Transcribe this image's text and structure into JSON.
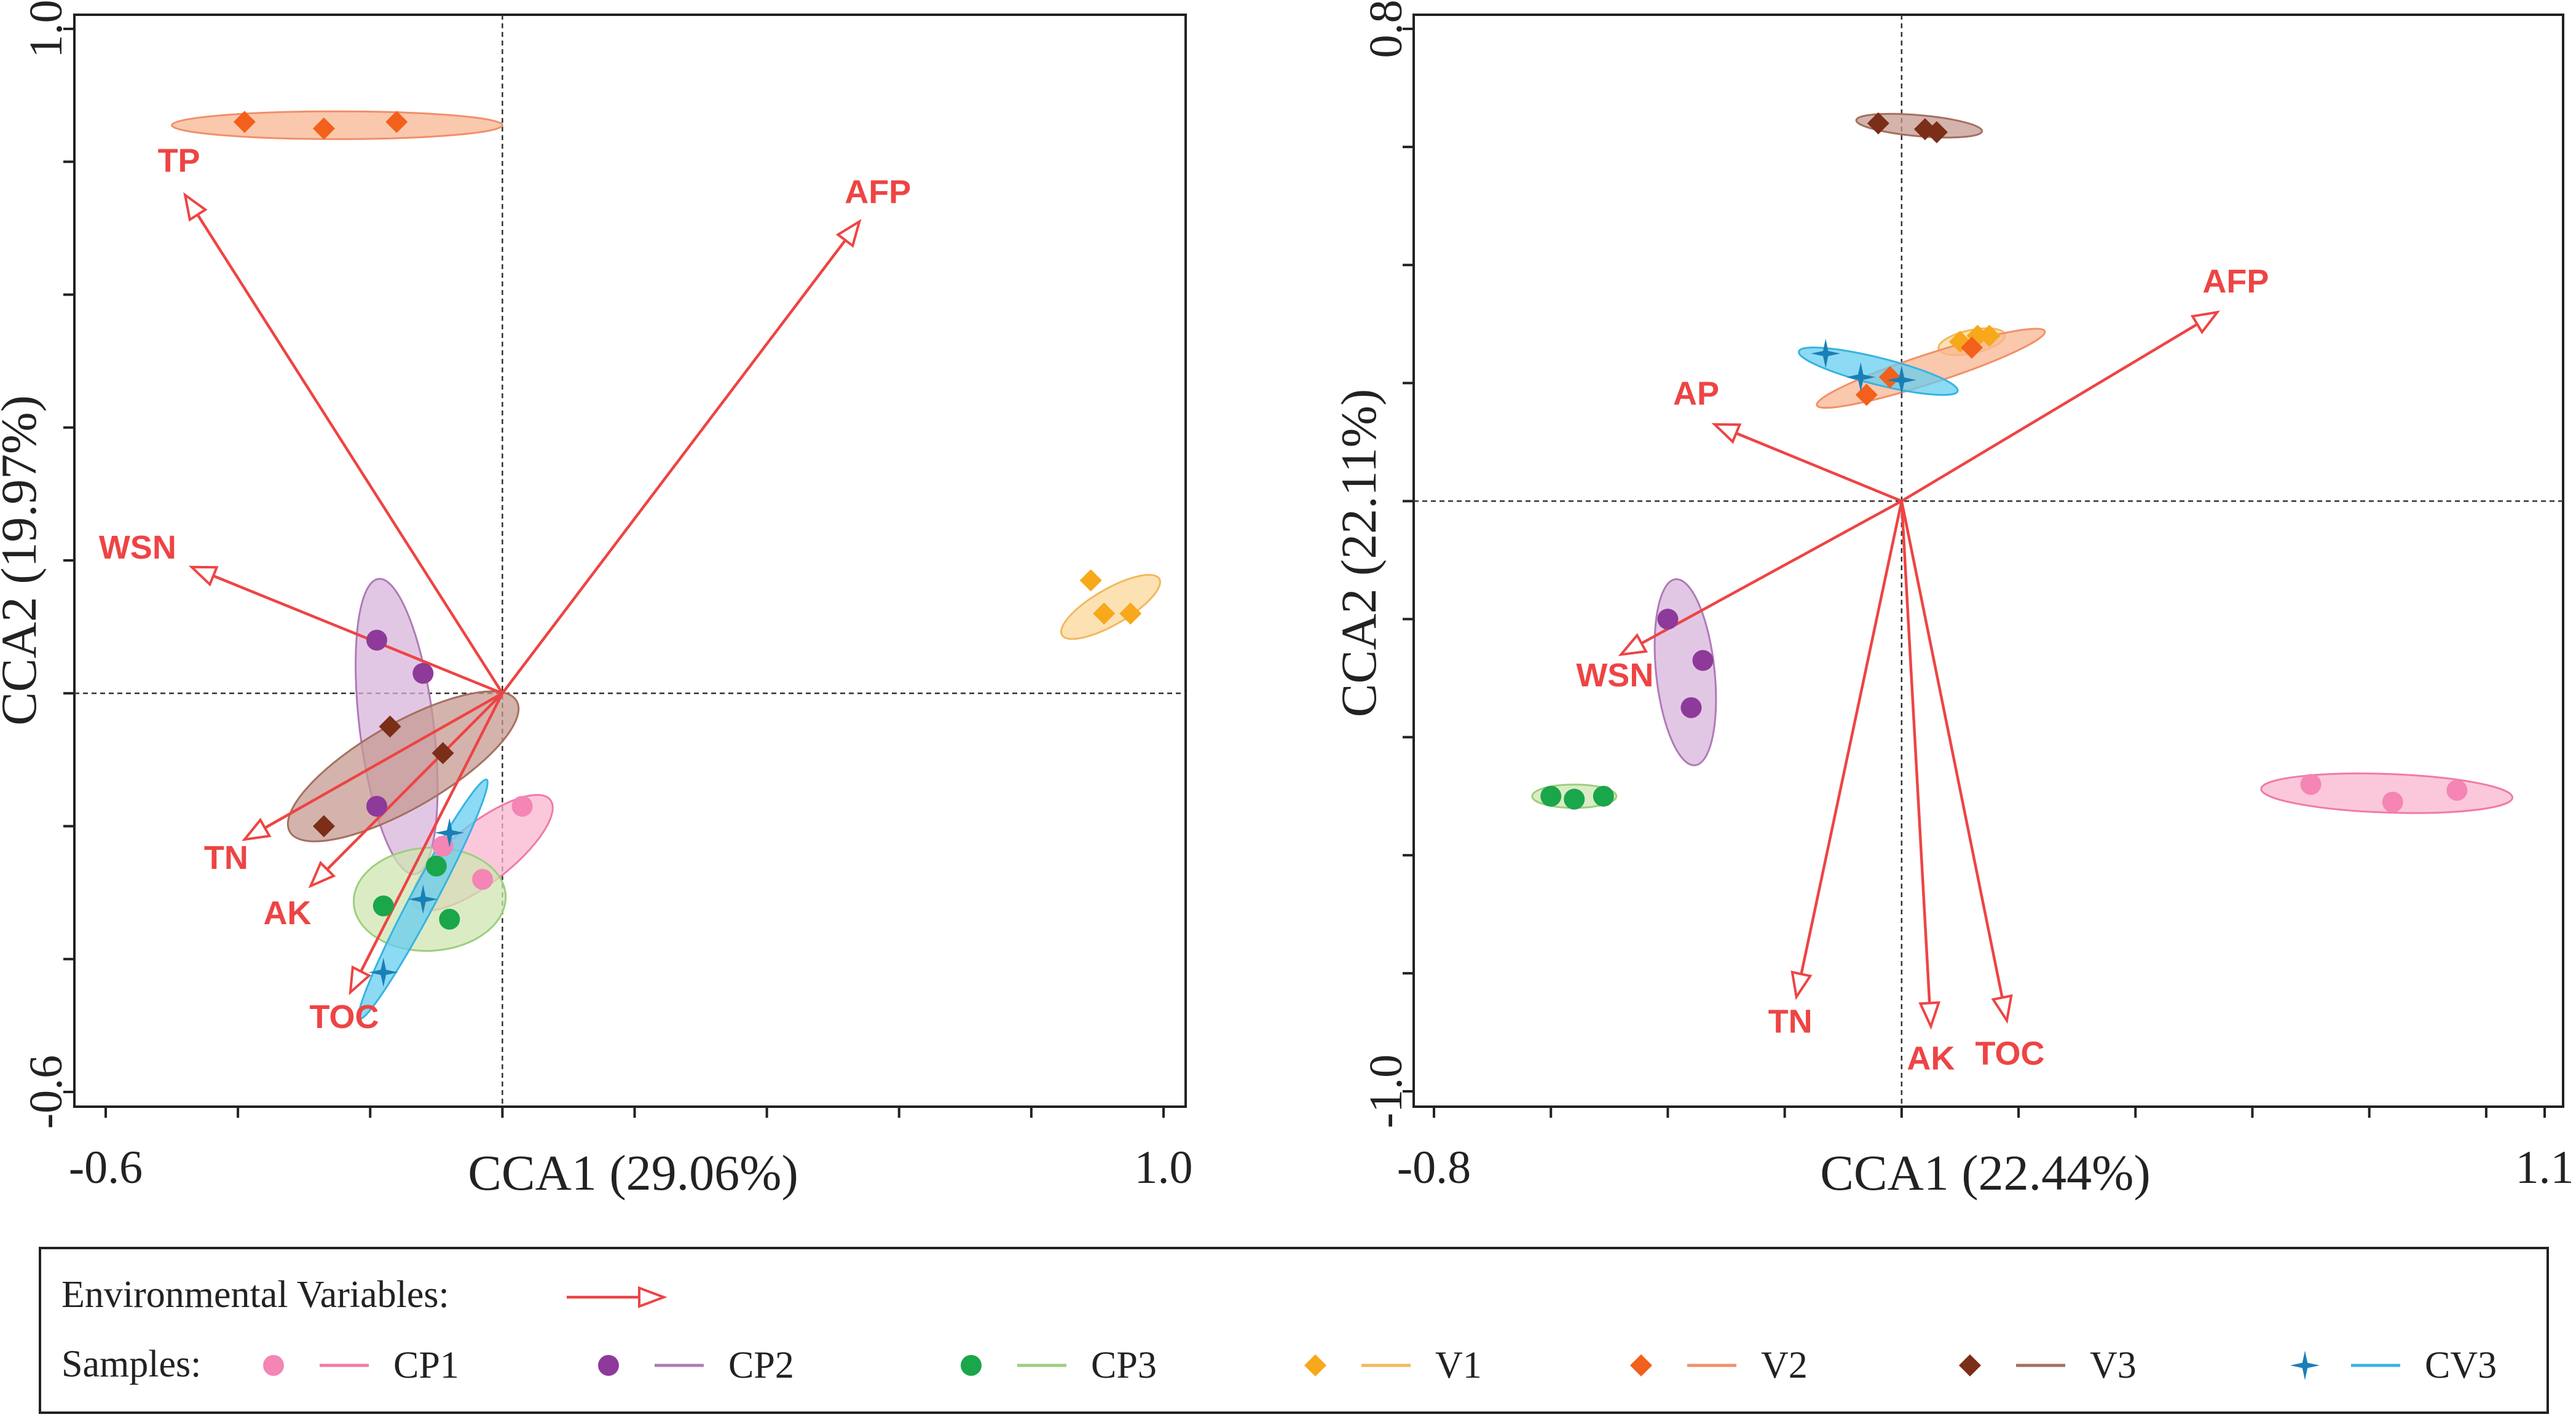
{
  "chart_data": [
    {
      "type": "scatter",
      "id": "left",
      "xlabel": "CCA1 (29.06%)",
      "ylabel": "CCA2 (19.97%)",
      "xlim": [
        -0.6,
        1.0
      ],
      "ylim": [
        -0.6,
        1.0
      ],
      "x_tick_labels": [
        {
          "value": -0.6,
          "label": "-0.6"
        },
        {
          "value": 1.0,
          "label": "1.0"
        }
      ],
      "y_tick_labels": [
        {
          "value": 1.0,
          "label": "1.0"
        },
        {
          "value": -0.6,
          "label": "-0.6"
        }
      ],
      "ref_lines": {
        "x": 0,
        "y": 0
      },
      "arrows": [
        {
          "name": "TP",
          "x": -0.48,
          "y": 0.75,
          "label": "TP"
        },
        {
          "name": "AFP",
          "x": 0.54,
          "y": 0.71,
          "label": "AFP"
        },
        {
          "name": "WSN",
          "x": -0.47,
          "y": 0.19,
          "label": "WSN"
        },
        {
          "name": "TN",
          "x": -0.39,
          "y": -0.22,
          "label": "TN"
        },
        {
          "name": "AK",
          "x": -0.29,
          "y": -0.29,
          "label": "AK"
        },
        {
          "name": "TOC",
          "x": -0.23,
          "y": -0.45,
          "label": "TOC"
        }
      ],
      "series": [
        {
          "name": "CP1",
          "points": [
            [
              0.03,
              -0.17
            ],
            [
              -0.03,
              -0.28
            ],
            [
              -0.09,
              -0.23
            ]
          ],
          "ellipse": {
            "cx": -0.03,
            "cy": -0.24,
            "rx": 0.13,
            "ry": 0.045,
            "angle": 38
          }
        },
        {
          "name": "CP2",
          "points": [
            [
              -0.19,
              0.08
            ],
            [
              -0.12,
              0.03
            ],
            [
              -0.19,
              -0.17
            ]
          ],
          "ellipse": {
            "cx": -0.16,
            "cy": -0.05,
            "rx": 0.225,
            "ry": 0.056,
            "angle": -83
          }
        },
        {
          "name": "CP3",
          "points": [
            [
              -0.18,
              -0.32
            ],
            [
              -0.1,
              -0.26
            ],
            [
              -0.08,
              -0.34
            ]
          ],
          "ellipse": {
            "cx": -0.11,
            "cy": -0.31,
            "rx": 0.115,
            "ry": 0.078,
            "angle": 3
          }
        },
        {
          "name": "V1",
          "points": [
            [
              0.89,
              0.17
            ],
            [
              0.91,
              0.12
            ],
            [
              0.95,
              0.12
            ]
          ],
          "ellipse": {
            "cx": 0.92,
            "cy": 0.13,
            "rx": 0.085,
            "ry": 0.027,
            "angle": 30
          }
        },
        {
          "name": "V2",
          "points": [
            [
              -0.39,
              0.86
            ],
            [
              -0.27,
              0.85
            ],
            [
              -0.16,
              0.86
            ]
          ],
          "ellipse": {
            "cx": -0.25,
            "cy": 0.855,
            "rx": 0.25,
            "ry": 0.021,
            "angle": 0
          }
        },
        {
          "name": "V3",
          "points": [
            [
              -0.17,
              -0.05
            ],
            [
              -0.09,
              -0.09
            ],
            [
              -0.27,
              -0.2
            ]
          ],
          "ellipse": {
            "cx": -0.15,
            "cy": -0.11,
            "rx": 0.198,
            "ry": 0.064,
            "angle": 30
          }
        },
        {
          "name": "CV3",
          "points": [
            [
              -0.08,
              -0.21
            ],
            [
              -0.12,
              -0.31
            ],
            [
              -0.18,
              -0.42
            ]
          ],
          "ellipse": {
            "cx": -0.12,
            "cy": -0.31,
            "rx": 0.205,
            "ry": 0.019,
            "angle": 62
          }
        }
      ]
    },
    {
      "type": "scatter",
      "id": "right",
      "xlabel": "CCA1 (22.44%)",
      "ylabel": "CCA2 (22.11%)",
      "xlim": [
        -0.8,
        1.1
      ],
      "ylim": [
        -1.0,
        0.8
      ],
      "x_tick_labels": [
        {
          "value": -0.8,
          "label": "-0.8"
        },
        {
          "value": 1.1,
          "label": "1.1"
        }
      ],
      "y_tick_labels": [
        {
          "value": 0.8,
          "label": "0.8"
        },
        {
          "value": -1.0,
          "label": "-1.0"
        }
      ],
      "ref_lines": {
        "x": 0,
        "y": 0
      },
      "arrows": [
        {
          "name": "AFP",
          "x": 0.54,
          "y": 0.32,
          "label": "AFP"
        },
        {
          "name": "AP",
          "x": -0.32,
          "y": 0.13,
          "label": "AP"
        },
        {
          "name": "WSN",
          "x": -0.48,
          "y": -0.26,
          "label": "WSN"
        },
        {
          "name": "TN",
          "x": -0.18,
          "y": -0.84,
          "label": "TN"
        },
        {
          "name": "AK",
          "x": 0.05,
          "y": -0.89,
          "label": "AK"
        },
        {
          "name": "TOC",
          "x": 0.18,
          "y": -0.88,
          "label": "TOC"
        }
      ],
      "series": [
        {
          "name": "CP1",
          "points": [
            [
              0.7,
              -0.48
            ],
            [
              0.84,
              -0.51
            ],
            [
              0.95,
              -0.49
            ]
          ],
          "ellipse": {
            "cx": 0.83,
            "cy": -0.495,
            "rx": 0.215,
            "ry": 0.033,
            "angle": -2
          }
        },
        {
          "name": "CP2",
          "points": [
            [
              -0.4,
              -0.2
            ],
            [
              -0.34,
              -0.27
            ],
            [
              -0.36,
              -0.35
            ]
          ],
          "ellipse": {
            "cx": -0.37,
            "cy": -0.29,
            "rx": 0.16,
            "ry": 0.05,
            "angle": -84
          }
        },
        {
          "name": "CP3",
          "points": [
            [
              -0.6,
              -0.5
            ],
            [
              -0.56,
              -0.505
            ],
            [
              -0.51,
              -0.5
            ]
          ],
          "ellipse": {
            "cx": -0.56,
            "cy": -0.5,
            "rx": 0.072,
            "ry": 0.02,
            "angle": 0
          }
        },
        {
          "name": "V1",
          "points": [
            [
              0.1,
              0.27
            ],
            [
              0.13,
              0.28
            ],
            [
              0.15,
              0.28
            ]
          ],
          "ellipse": {
            "cx": 0.12,
            "cy": 0.27,
            "rx": 0.058,
            "ry": 0.02,
            "angle": 12
          }
        },
        {
          "name": "V2",
          "points": [
            [
              0.12,
              0.26
            ],
            [
              -0.02,
              0.21
            ],
            [
              -0.06,
              0.18
            ]
          ],
          "ellipse": {
            "cx": 0.05,
            "cy": 0.225,
            "rx": 0.205,
            "ry": 0.025,
            "angle": 18
          }
        },
        {
          "name": "V3",
          "points": [
            [
              -0.04,
              0.64
            ],
            [
              0.04,
              0.63
            ],
            [
              0.06,
              0.625
            ]
          ],
          "ellipse": {
            "cx": 0.03,
            "cy": 0.636,
            "rx": 0.108,
            "ry": 0.018,
            "angle": -5
          }
        },
        {
          "name": "CV3",
          "points": [
            [
              -0.13,
              0.25
            ],
            [
              -0.07,
              0.21
            ],
            [
              0.0,
              0.205
            ]
          ],
          "ellipse": {
            "cx": -0.04,
            "cy": 0.22,
            "rx": 0.14,
            "ry": 0.023,
            "angle": -14
          }
        }
      ]
    }
  ],
  "legend": {
    "env_label": "Environmental Variables:",
    "samples_label": "Samples:",
    "items": [
      {
        "name": "CP1",
        "label": "CP1"
      },
      {
        "name": "CP2",
        "label": "CP2"
      },
      {
        "name": "CP3",
        "label": "CP3"
      },
      {
        "name": "V1",
        "label": "V1"
      },
      {
        "name": "V2",
        "label": "V2"
      },
      {
        "name": "V3",
        "label": "V3"
      },
      {
        "name": "CV3",
        "label": "CV3"
      }
    ]
  },
  "styles": {
    "arrow_color": "#ee4444",
    "CP1": {
      "marker": "circle",
      "point": "#f485b4",
      "fill": "#f9b6cf",
      "stroke": "#f07aa8"
    },
    "CP2": {
      "marker": "circle",
      "point": "#8e3a9a",
      "fill": "#d8b4dc",
      "stroke": "#b07ab8"
    },
    "CP3": {
      "marker": "circle",
      "point": "#1aa64a",
      "fill": "#cfe5b2",
      "stroke": "#9ccf7e"
    },
    "V1": {
      "marker": "diamond",
      "point": "#f7a81b",
      "fill": "#fbd79a",
      "stroke": "#f2b85d"
    },
    "V2": {
      "marker": "diamond",
      "point": "#f2601c",
      "fill": "#f8b690",
      "stroke": "#f0906a"
    },
    "V3": {
      "marker": "diamond",
      "point": "#7b2e18",
      "fill": "#c59a92",
      "stroke": "#a5705f"
    },
    "CV3": {
      "marker": "star",
      "point": "#1a7fb6",
      "fill": "#66cdf0",
      "stroke": "#38b3e0"
    }
  }
}
